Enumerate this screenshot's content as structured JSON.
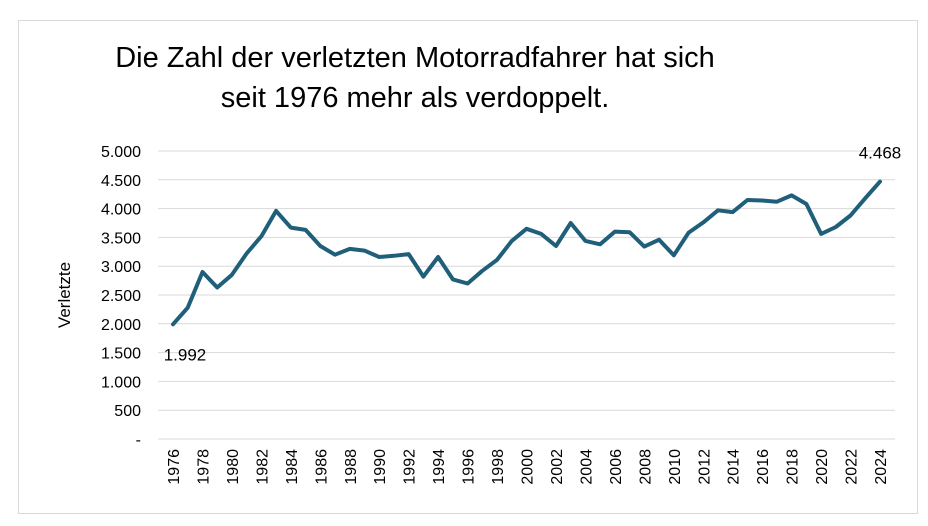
{
  "chart_data": {
    "type": "line",
    "title": "Die Zahl der verletzten Motorradfahrer hat sich seit 1976 mehr als verdoppelt.",
    "title_lines": [
      "Die Zahl der verletzten Motorradfahrer hat sich",
      "seit 1976 mehr als verdoppelt."
    ],
    "xlabel": "",
    "ylabel": "Verletzte",
    "ylim": [
      0,
      5000
    ],
    "grid": true,
    "legend": "none",
    "line_color": "#1f5f7a",
    "y_ticks": [
      {
        "value": 5000,
        "label": "5.000"
      },
      {
        "value": 4500,
        "label": "4.500"
      },
      {
        "value": 4000,
        "label": "4.000"
      },
      {
        "value": 3500,
        "label": "3.500"
      },
      {
        "value": 3000,
        "label": "3.000"
      },
      {
        "value": 2500,
        "label": "2.500"
      },
      {
        "value": 2000,
        "label": "2.000"
      },
      {
        "value": 1500,
        "label": "1.500"
      },
      {
        "value": 1000,
        "label": "1.000"
      },
      {
        "value": 500,
        "label": "500"
      },
      {
        "value": 0,
        "label": "-"
      }
    ],
    "x_tick_labels": [
      "1976",
      "1978",
      "1980",
      "1982",
      "1984",
      "1986",
      "1988",
      "1990",
      "1992",
      "1994",
      "1996",
      "1998",
      "2000",
      "2002",
      "2004",
      "2006",
      "2008",
      "2010",
      "2012",
      "2014",
      "2016",
      "2018",
      "2020",
      "2022",
      "2024"
    ],
    "x": [
      1976,
      1977,
      1978,
      1979,
      1980,
      1981,
      1982,
      1983,
      1984,
      1985,
      1986,
      1987,
      1988,
      1989,
      1990,
      1991,
      1992,
      1993,
      1994,
      1995,
      1996,
      1997,
      1998,
      1999,
      2000,
      2001,
      2002,
      2003,
      2004,
      2005,
      2006,
      2007,
      2008,
      2009,
      2010,
      2011,
      2012,
      2013,
      2014,
      2015,
      2016,
      2017,
      2018,
      2019,
      2020,
      2021,
      2022,
      2023,
      2024
    ],
    "series": [
      {
        "values": [
          1992,
          2280,
          2900,
          2630,
          2850,
          3220,
          3520,
          3960,
          3670,
          3630,
          3350,
          3200,
          3300,
          3270,
          3160,
          3180,
          3210,
          2820,
          3160,
          2770,
          2700,
          2920,
          3110,
          3440,
          3650,
          3560,
          3350,
          3750,
          3440,
          3380,
          3600,
          3590,
          3340,
          3460,
          3190,
          3580,
          3760,
          3970,
          3940,
          4150,
          4140,
          4120,
          4230,
          4080,
          3560,
          3680,
          3880,
          4180,
          4468
        ]
      }
    ],
    "annotations": [
      {
        "year": 1976,
        "label": "1.992"
      },
      {
        "year": 2024,
        "label": "4.468"
      }
    ]
  }
}
